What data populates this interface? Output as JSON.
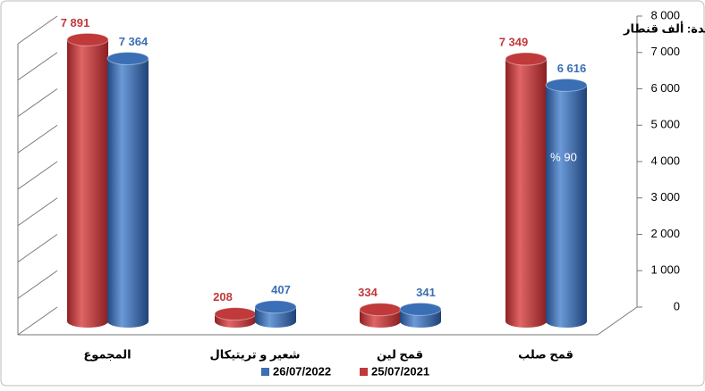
{
  "chart_data": {
    "type": "bar3d",
    "unit": "الوحدة: ألف قنطار",
    "annotation": "% 90",
    "categories": [
      "المجموع",
      "شعير و تريتيكال",
      "قمح لين",
      "قمح صلب"
    ],
    "series": [
      {
        "name": "25/07/2021",
        "color": "#c0393b",
        "values": [
          7891,
          208,
          334,
          7349
        ],
        "value_labels": [
          "7 891",
          "208",
          "334",
          "7 349"
        ]
      },
      {
        "name": "26/07/2022",
        "color": "#3a6fb5",
        "values": [
          7364,
          407,
          341,
          6616
        ],
        "value_labels": [
          "7 364",
          "407",
          "341",
          "6 616"
        ]
      }
    ],
    "ylim": [
      0,
      8000
    ],
    "yticks": [
      0,
      {
        "value": 1000,
        "label": "1 000"
      },
      {
        "value": 2000,
        "label": "2 000"
      },
      {
        "value": 3000,
        "label": "3 000"
      },
      {
        "value": 4000,
        "label": "4 000"
      },
      {
        "value": 5000,
        "label": "5 000"
      },
      {
        "value": 6000,
        "label": "6 000"
      },
      {
        "value": 7000,
        "label": "7 000"
      },
      {
        "value": 8000,
        "label": "8 000"
      }
    ],
    "grid": true
  }
}
